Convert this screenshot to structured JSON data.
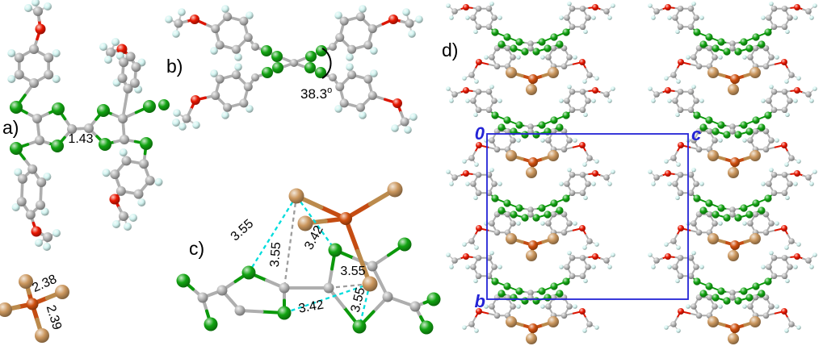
{
  "colors": {
    "sulfur_green": "#12a412",
    "carbon_gray": "#b5b5b5",
    "hydrogen_cyan": "#d3f4f1",
    "oxygen_red": "#e91700",
    "iron_orange": "#d0500f",
    "bromine_tan": "#cb975e",
    "contact_cyan": "#00dcdc",
    "contact_gray": "#9d9d9d",
    "unit_cell_blue": "#2424d6",
    "annotation_black": "#000000",
    "background": "#ffffff"
  },
  "panels": {
    "a": {
      "label": "a)",
      "central_bond_length": "1.43",
      "anion_bond_lengths": [
        "2.38",
        "2.39"
      ]
    },
    "b": {
      "label": "b)",
      "dihedral_angle": "38.3",
      "degree_symbol": "o"
    },
    "c": {
      "label": "c)",
      "contact_distances": [
        "3.55",
        "3.55",
        "3.42",
        "3.55",
        "3.55",
        "3.42"
      ]
    },
    "d": {
      "label": "d)",
      "origin_label": "0",
      "axis_horizontal_label": "c",
      "axis_vertical_label": "b"
    }
  }
}
